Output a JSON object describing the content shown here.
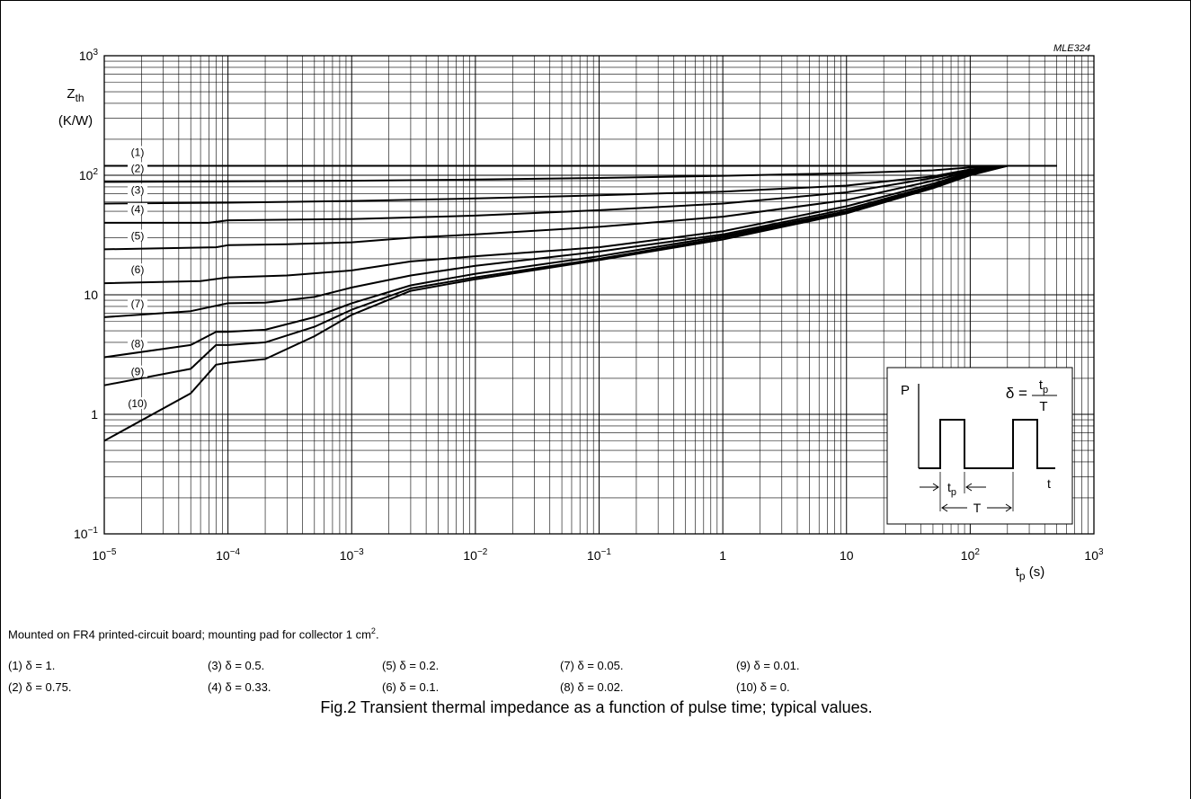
{
  "chart_data": {
    "type": "line",
    "code": "MLE324",
    "ylabel_main": "Z",
    "ylabel_sub": "th",
    "ylabel_unit": "(K/W)",
    "xlabel_main": "t",
    "xlabel_sub": "p",
    "xlabel_unit": "(s)",
    "x_scale": "log",
    "y_scale": "log",
    "xlim": [
      1e-05,
      1000
    ],
    "ylim": [
      0.1,
      1000
    ],
    "grid": true,
    "x_ticks": [
      {
        "value": 1e-05,
        "base": "10",
        "exp": "−5"
      },
      {
        "value": 0.0001,
        "base": "10",
        "exp": "−4"
      },
      {
        "value": 0.001,
        "base": "10",
        "exp": "−3"
      },
      {
        "value": 0.01,
        "base": "10",
        "exp": "−2"
      },
      {
        "value": 0.1,
        "base": "10",
        "exp": "−1"
      },
      {
        "value": 1,
        "base": "1",
        "exp": ""
      },
      {
        "value": 10,
        "base": "10",
        "exp": ""
      },
      {
        "value": 100,
        "base": "10",
        "exp": "2"
      },
      {
        "value": 1000,
        "base": "10",
        "exp": "3"
      }
    ],
    "y_ticks": [
      {
        "value": 0.1,
        "base": "10",
        "exp": "−1"
      },
      {
        "value": 1,
        "base": "1",
        "exp": ""
      },
      {
        "value": 10,
        "base": "10",
        "exp": ""
      },
      {
        "value": 100,
        "base": "10",
        "exp": "2"
      },
      {
        "value": 1000,
        "base": "10",
        "exp": "3"
      }
    ],
    "series": [
      {
        "name": "(1)",
        "x": [
          1e-05,
          0.001,
          0.1,
          10,
          100,
          500
        ],
        "y": [
          120,
          120,
          120,
          120,
          120,
          120
        ]
      },
      {
        "name": "(2)",
        "x": [
          1e-05,
          0.0001,
          0.001,
          0.01,
          0.1,
          1,
          10,
          50,
          100,
          200,
          500
        ],
        "y": [
          88,
          89,
          90,
          92,
          95,
          99,
          104,
          110,
          116,
          120,
          120
        ]
      },
      {
        "name": "(3)",
        "x": [
          1e-05,
          0.0001,
          0.001,
          0.01,
          0.1,
          1,
          10,
          50,
          100,
          200,
          500
        ],
        "y": [
          58,
          59,
          61,
          64,
          68,
          73,
          82,
          98,
          112,
          120,
          120
        ]
      },
      {
        "name": "(4)",
        "x": [
          1e-05,
          7e-05,
          0.0001,
          0.001,
          0.01,
          0.1,
          1,
          10,
          50,
          100,
          200,
          500
        ],
        "y": [
          40,
          40,
          42,
          43,
          46,
          51,
          58,
          72,
          95,
          110,
          120,
          120
        ]
      },
      {
        "name": "(5)",
        "x": [
          1e-05,
          8e-05,
          0.0001,
          0.0003,
          0.001,
          0.003,
          0.01,
          0.1,
          1,
          10,
          50,
          100,
          200,
          500
        ],
        "y": [
          24,
          25,
          26,
          26.5,
          27.5,
          30,
          32,
          37,
          45,
          62,
          90,
          108,
          120,
          120
        ]
      },
      {
        "name": "(6)",
        "x": [
          1e-05,
          6e-05,
          0.0001,
          0.0003,
          0.001,
          0.003,
          0.01,
          0.1,
          1,
          10,
          50,
          100,
          200,
          500
        ],
        "y": [
          12.5,
          13,
          14,
          14.5,
          16,
          19,
          21,
          25,
          34,
          55,
          85,
          106,
          120,
          120
        ]
      },
      {
        "name": "(7)",
        "x": [
          1e-05,
          5e-05,
          0.0001,
          0.0002,
          0.0005,
          0.001,
          0.003,
          0.01,
          0.1,
          1,
          10,
          50,
          100,
          200,
          500
        ],
        "y": [
          6.5,
          7.3,
          8.5,
          8.6,
          9.6,
          11.5,
          14.5,
          17.5,
          23,
          32,
          52,
          82,
          104,
          120,
          120
        ]
      },
      {
        "name": "(8)",
        "x": [
          1e-05,
          5e-05,
          8e-05,
          0.0001,
          0.0002,
          0.0005,
          0.001,
          0.003,
          0.01,
          0.1,
          1,
          10,
          50,
          100,
          200,
          500
        ],
        "y": [
          3,
          3.8,
          4.9,
          4.9,
          5.1,
          6.5,
          8.5,
          12,
          15,
          21,
          31,
          50,
          80,
          102,
          120,
          120
        ]
      },
      {
        "name": "(9)",
        "x": [
          1e-05,
          5e-05,
          8e-05,
          0.0001,
          0.0002,
          0.0005,
          0.001,
          0.003,
          0.01,
          0.1,
          1,
          10,
          50,
          100,
          200,
          500
        ],
        "y": [
          1.75,
          2.4,
          3.8,
          3.8,
          4.0,
          5.4,
          7.5,
          11.3,
          14,
          20,
          30,
          49,
          79,
          101,
          120,
          120
        ]
      },
      {
        "name": "(10)",
        "x": [
          1e-05,
          5e-05,
          8e-05,
          0.0001,
          0.0002,
          0.0005,
          0.001,
          0.003,
          0.01,
          0.1,
          1,
          10,
          50,
          100,
          200,
          500
        ],
        "y": [
          0.6,
          1.5,
          2.6,
          2.7,
          2.9,
          4.5,
          6.8,
          10.8,
          13.5,
          19.5,
          29,
          48,
          78,
          100,
          120,
          120
        ]
      }
    ],
    "curve_labels": [
      {
        "text": "(1)",
        "y": 120
      },
      {
        "text": "(2)",
        "y": 88
      },
      {
        "text": "(3)",
        "y": 58
      },
      {
        "text": "(4)",
        "y": 40
      },
      {
        "text": "(5)",
        "y": 24
      },
      {
        "text": "(6)",
        "y": 12.5
      },
      {
        "text": "(7)",
        "y": 6.5
      },
      {
        "text": "(8)",
        "y": 3
      },
      {
        "text": "(9)",
        "y": 1.75
      },
      {
        "text": "(10)",
        "y": 0.95
      }
    ],
    "inset": {
      "p_label": "P",
      "delta_lhs": "δ =",
      "frac_num_main": "t",
      "frac_num_sub": "p",
      "frac_den": "T",
      "t_label": "t",
      "tp_main": "t",
      "tp_sub": "p",
      "period_label": "T"
    }
  },
  "notes": {
    "mounting_prefix": "Mounted on FR4 printed-circuit board; mounting pad for collector 1 cm",
    "mounting_sup": "2",
    "mounting_suffix": ".",
    "legend": [
      "(1)  δ = 1.",
      "(2)  δ = 0.75.",
      "(3)  δ = 0.5.",
      "(4)  δ = 0.33.",
      "(5)  δ = 0.2.",
      "(6)  δ = 0.1.",
      "(7)  δ = 0.05.",
      "(8)  δ = 0.02.",
      "(9)  δ = 0.01.",
      "(10) δ = 0."
    ]
  },
  "caption": "Fig.2  Transient thermal impedance as a function of pulse time; typical values."
}
